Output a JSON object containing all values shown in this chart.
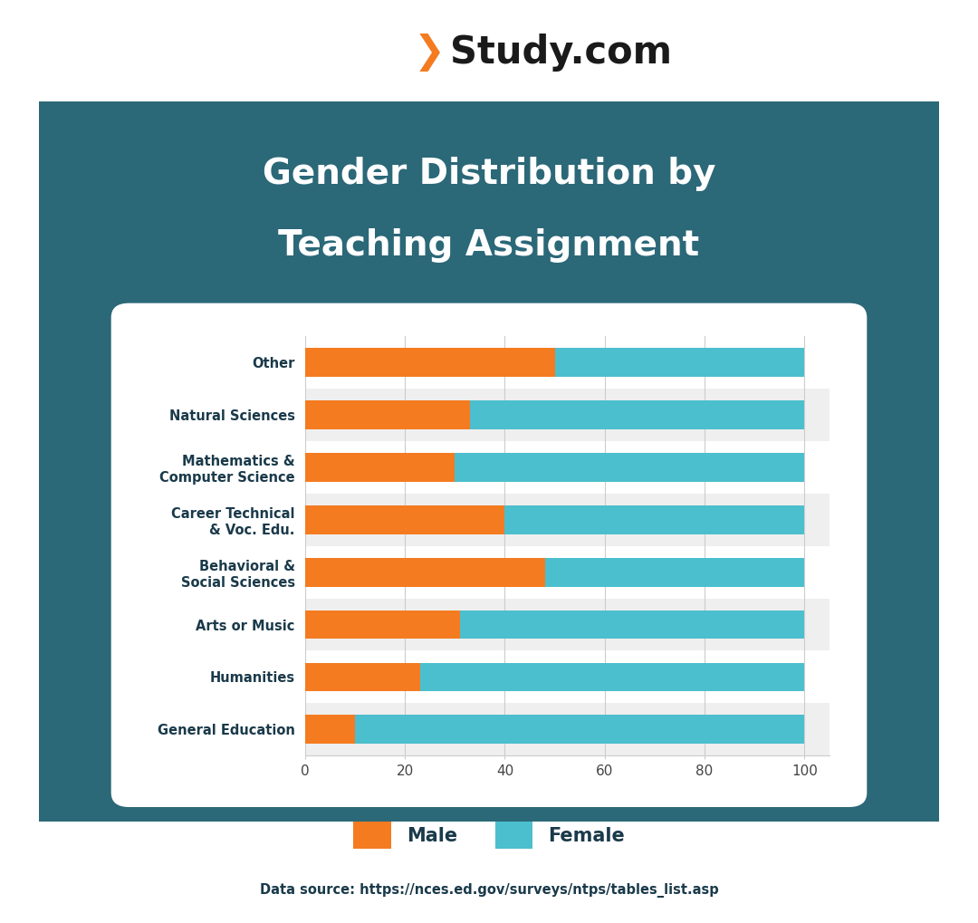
{
  "categories": [
    "General Education",
    "Humanities",
    "Arts or Music",
    "Behavioral &\nSocial Sciences",
    "Career Technical\n& Voc. Edu.",
    "Mathematics &\nComputer Science",
    "Natural Sciences",
    "Other"
  ],
  "male_values": [
    10,
    23,
    31,
    48,
    40,
    30,
    33,
    50
  ],
  "female_values": [
    90,
    77,
    69,
    52,
    60,
    70,
    67,
    50
  ],
  "male_color": "#F47B20",
  "female_color": "#4BBFCD",
  "title_line1": "Gender Distribution by",
  "title_line2": "Teaching Assignment",
  "title_color": "#FFFFFF",
  "background_color": "#2B6878",
  "chart_bg": "#FFFFFF",
  "x_ticks": [
    0,
    20,
    40,
    60,
    80,
    100
  ],
  "legend_male": "Male",
  "legend_female": "Female",
  "data_source": "Data source: https://nces.ed.gov/surveys/ntps/tables_list.asp",
  "bar_height": 0.55,
  "alt_row_color": "#EFEFEF",
  "white_row_color": "#FFFFFF",
  "legend_text_color": "#1A3A4A",
  "source_text_color": "#1A3A4A"
}
